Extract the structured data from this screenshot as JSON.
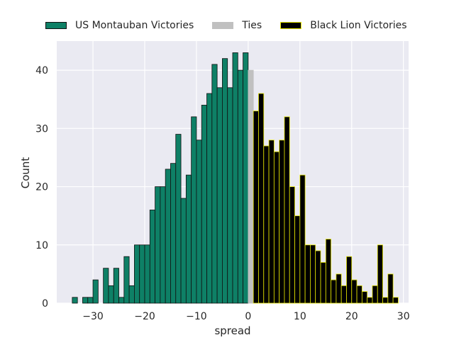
{
  "chart_data": {
    "type": "bar",
    "subtype": "stacked-histogram",
    "title": "",
    "xlabel": "spread",
    "ylabel": "Count",
    "xlim": [
      -37,
      31
    ],
    "ylim": [
      0,
      45
    ],
    "xticks": [
      -30,
      -20,
      -10,
      0,
      10,
      20,
      30
    ],
    "xtick_labels": [
      "−30",
      "−20",
      "−10",
      "0",
      "10",
      "20",
      "30"
    ],
    "yticks": [
      0,
      10,
      20,
      30,
      40
    ],
    "ytick_labels": [
      "0",
      "10",
      "20",
      "30",
      "40"
    ],
    "grid": true,
    "legend_position": "top",
    "series": [
      {
        "name": "US Montauban Victories",
        "color": "#0e8066",
        "edge": "#111111",
        "x": [
          -34,
          -32,
          -31,
          -30,
          -28,
          -27,
          -26,
          -25,
          -24,
          -23,
          -22,
          -21,
          -20,
          -19,
          -18,
          -17,
          -16,
          -15,
          -14,
          -13,
          -12,
          -11,
          -10,
          -9,
          -8,
          -7,
          -6,
          -5,
          -4,
          -3,
          -2,
          -1
        ],
        "values": [
          1,
          1,
          1,
          4,
          6,
          3,
          6,
          1,
          8,
          3,
          10,
          10,
          10,
          16,
          20,
          20,
          23,
          24,
          29,
          18,
          22,
          32,
          28,
          34,
          36,
          41,
          37,
          42,
          37,
          43,
          40,
          43
        ]
      },
      {
        "name": "Ties",
        "color": "#c0c0c0",
        "edge": "#c0c0c0",
        "x": [
          0
        ],
        "values": [
          40
        ]
      },
      {
        "name": "Black Lion Victories",
        "color": "#000000",
        "edge": "#e6e600",
        "x": [
          1,
          2,
          3,
          4,
          5,
          6,
          7,
          8,
          9,
          10,
          11,
          12,
          13,
          14,
          15,
          16,
          17,
          18,
          19,
          20,
          21,
          22,
          23,
          24,
          25,
          26,
          27,
          28
        ],
        "values": [
          33,
          36,
          27,
          28,
          26,
          28,
          32,
          20,
          15,
          22,
          10,
          10,
          9,
          7,
          11,
          4,
          5,
          3,
          8,
          4,
          3,
          2,
          1,
          3,
          10,
          1,
          5,
          1
        ]
      }
    ]
  }
}
